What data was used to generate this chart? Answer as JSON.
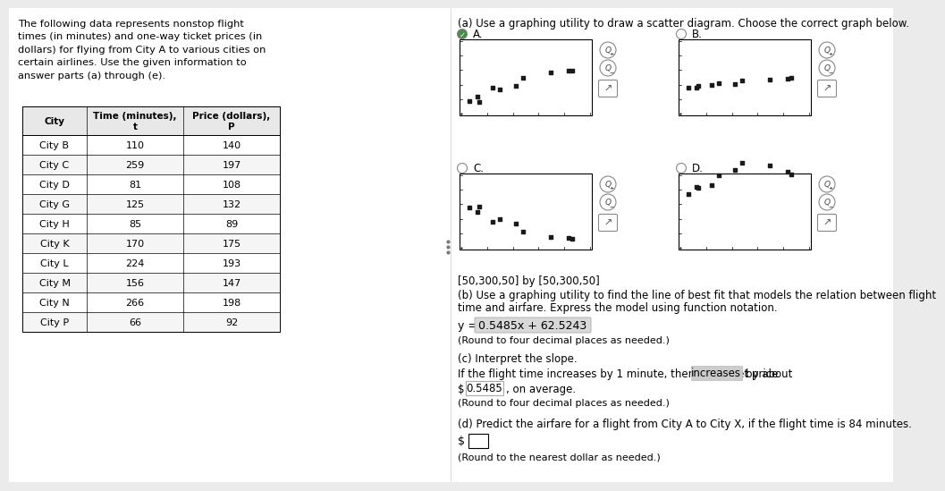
{
  "intro_text": "The following data represents nonstop flight\ntimes (in minutes) and one-way ticket prices (in\ndollars) for flying from City A to various cities on\ncertain airlines. Use the given information to\nanswer parts (a) through (e).",
  "table_data": [
    [
      "City B",
      "110",
      "140"
    ],
    [
      "City C",
      "259",
      "197"
    ],
    [
      "City D",
      "81",
      "108"
    ],
    [
      "City G",
      "125",
      "132"
    ],
    [
      "City H",
      "85",
      "89"
    ],
    [
      "City K",
      "170",
      "175"
    ],
    [
      "City L",
      "224",
      "193"
    ],
    [
      "City M",
      "156",
      "147"
    ],
    [
      "City N",
      "266",
      "198"
    ],
    [
      "City P",
      "66",
      "92"
    ]
  ],
  "scatter_x": [
    110,
    259,
    81,
    125,
    85,
    170,
    224,
    156,
    266,
    66
  ],
  "scatter_y": [
    140,
    197,
    108,
    132,
    89,
    175,
    193,
    147,
    198,
    92
  ],
  "axis_range_text": "[50,300,50] by [50,300,50]",
  "part_b_line1": "(b) Use a graphing utility to find the line of best fit that models the relation between flight",
  "part_b_line2": "time and airfare. Express the model using function notation.",
  "equation_prefix": "y = ",
  "equation_box_text": "0.5485x + 62.5243",
  "round_note": "(Round to four decimal places as needed.)",
  "part_c_header": "(c) Interpret the slope.",
  "part_c_line": "If the flight time increases by 1 minute, then the ticket price",
  "part_c_box": "increases",
  "part_c_after": "by about",
  "part_c_dollar_prefix": "$ ",
  "part_c_dollar_box": "0.5485",
  "part_c_suffix": ", on average.",
  "round_note_c": "(Round to four decimal places as needed.)",
  "part_d_line": "(d) Predict the airfare for a flight from City A to City X, if the flight time is 84 minutes.",
  "round_note_d": "(Round to the nearest dollar as needed.)",
  "bg_color": "#ebebeb",
  "white": "#ffffff",
  "black": "#000000",
  "gray_light": "#e0e0e0",
  "gray_mid": "#cccccc",
  "dot_color": "#1a1a1a"
}
